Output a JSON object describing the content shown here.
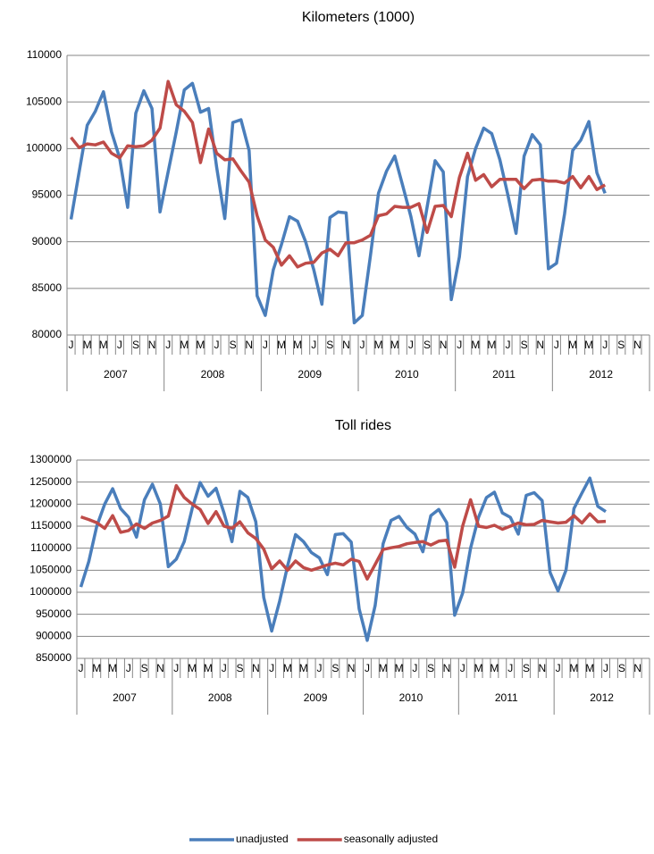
{
  "chart_data": [
    {
      "type": "line",
      "title": "Kilometers (1000)",
      "categories": [
        "J",
        null,
        "M",
        null,
        "M",
        null,
        "J",
        null,
        "S",
        null,
        "N",
        null,
        "J",
        null,
        "M",
        null,
        "M",
        null,
        "J",
        null,
        "S",
        null,
        "N",
        null,
        "J",
        null,
        "M",
        null,
        "M",
        null,
        "J",
        null,
        "S",
        null,
        "N",
        null,
        "J",
        null,
        "M",
        null,
        "M",
        null,
        "J",
        null,
        "S",
        null,
        "N",
        null,
        "J",
        null,
        "M",
        null,
        "M",
        null,
        "J",
        null,
        "S",
        null,
        "N",
        null,
        "J",
        null,
        "M",
        null,
        "M",
        null,
        "J",
        null,
        "S",
        null,
        "N",
        null
      ],
      "years": [
        "2007",
        "2008",
        "2009",
        "2010",
        "2011",
        "2012"
      ],
      "series": [
        {
          "color": "#4a7ebb",
          "values": [
            92400,
            97500,
            102500,
            104000,
            106100,
            101800,
            99000,
            93700,
            103800,
            106200,
            104300,
            93200,
            97500,
            101800,
            106300,
            107000,
            103900,
            104300,
            98000,
            92500,
            102800,
            103100,
            99800,
            84200,
            82100,
            87000,
            89700,
            92700,
            92200,
            90000,
            87000,
            83300,
            92600,
            93200,
            93100,
            81300,
            82100,
            88500,
            95200,
            97600,
            99200,
            96000,
            92700,
            88500,
            93700,
            98700,
            97500,
            83800,
            88400,
            97000,
            100000,
            102200,
            101600,
            98800,
            95000,
            90900,
            99200,
            101500,
            100400,
            87100,
            87700,
            93000,
            99800,
            100900,
            102900,
            97400,
            95200,
            null,
            null,
            null,
            null,
            null
          ]
        },
        {
          "color": "#be4b48",
          "values": [
            101200,
            100100,
            100500,
            100400,
            100700,
            99500,
            99000,
            100300,
            100200,
            100300,
            100900,
            102200,
            107200,
            104700,
            104000,
            102800,
            98500,
            102100,
            99500,
            98800,
            98900,
            97600,
            96400,
            92800,
            90200,
            89400,
            87500,
            88500,
            87300,
            87700,
            87800,
            88800,
            89200,
            88500,
            89900,
            89900,
            90200,
            90700,
            92800,
            93000,
            93800,
            93700,
            93700,
            94100,
            91000,
            93800,
            93900,
            92700,
            96900,
            99500,
            96600,
            97200,
            95900,
            96700,
            96700,
            96700,
            95700,
            96600,
            96700,
            96500,
            96500,
            96300,
            97000,
            95800,
            97000,
            95600,
            96100,
            null,
            null,
            null,
            null,
            null
          ]
        }
      ],
      "ylim": [
        80000,
        110000
      ],
      "yticks": [
        80000,
        85000,
        90000,
        95000,
        100000,
        105000,
        110000
      ],
      "grid": true
    },
    {
      "type": "line",
      "title": "Toll rides",
      "categories": [
        "J",
        null,
        "M",
        null,
        "M",
        null,
        "J",
        null,
        "S",
        null,
        "N",
        null,
        "J",
        null,
        "M",
        null,
        "M",
        null,
        "J",
        null,
        "S",
        null,
        "N",
        null,
        "J",
        null,
        "M",
        null,
        "M",
        null,
        "J",
        null,
        "S",
        null,
        "N",
        null,
        "J",
        null,
        "M",
        null,
        "M",
        null,
        "J",
        null,
        "S",
        null,
        "N",
        null,
        "J",
        null,
        "M",
        null,
        "M",
        null,
        "J",
        null,
        "S",
        null,
        "N",
        null,
        "J",
        null,
        "M",
        null,
        "M",
        null,
        "J",
        null,
        "S",
        null,
        "N",
        null
      ],
      "years": [
        "2007",
        "2008",
        "2009",
        "2010",
        "2011",
        "2012"
      ],
      "series": [
        {
          "name": "unadjusted",
          "color": "#4a7ebb",
          "values": [
            1012000,
            1070000,
            1150000,
            1200000,
            1235000,
            1190000,
            1170000,
            1125000,
            1210000,
            1245000,
            1200000,
            1058000,
            1075000,
            1115000,
            1190000,
            1249000,
            1218000,
            1236000,
            1180000,
            1115000,
            1229000,
            1215000,
            1160000,
            988000,
            912000,
            980000,
            1060000,
            1131000,
            1115000,
            1090000,
            1078000,
            1040000,
            1131000,
            1133000,
            1114000,
            962000,
            891000,
            970000,
            1110000,
            1163000,
            1172000,
            1147000,
            1132000,
            1092000,
            1174000,
            1188000,
            1158000,
            948000,
            998000,
            1100000,
            1170000,
            1215000,
            1227000,
            1180000,
            1170000,
            1132000,
            1220000,
            1226000,
            1208000,
            1045000,
            1003000,
            1050000,
            1190000,
            1225000,
            1259000,
            1195000,
            1183000,
            null,
            null,
            null,
            null,
            null
          ]
        },
        {
          "name": "seasonally adjusted",
          "color": "#be4b48",
          "values": [
            1171000,
            1165000,
            1158000,
            1145000,
            1174000,
            1136000,
            1140000,
            1155000,
            1145000,
            1157000,
            1163000,
            1173000,
            1242000,
            1215000,
            1200000,
            1188000,
            1156000,
            1183000,
            1150000,
            1145000,
            1160000,
            1135000,
            1122000,
            1098000,
            1053000,
            1071000,
            1050000,
            1071000,
            1056000,
            1050000,
            1056000,
            1062000,
            1066000,
            1062000,
            1075000,
            1070000,
            1030000,
            1063000,
            1097000,
            1101000,
            1104000,
            1110000,
            1113000,
            1115000,
            1107000,
            1116000,
            1118000,
            1057000,
            1150000,
            1210000,
            1150000,
            1147000,
            1152000,
            1143000,
            1150000,
            1157000,
            1153000,
            1154000,
            1163000,
            1160000,
            1157000,
            1159000,
            1174000,
            1157000,
            1178000,
            1160000,
            1161000,
            null,
            null,
            null,
            null,
            null
          ]
        }
      ],
      "ylim": [
        850000,
        1300000
      ],
      "yticks": [
        850000,
        900000,
        950000,
        1000000,
        1050000,
        1100000,
        1150000,
        1200000,
        1250000,
        1300000
      ],
      "grid": true,
      "legend": "bottom"
    }
  ]
}
